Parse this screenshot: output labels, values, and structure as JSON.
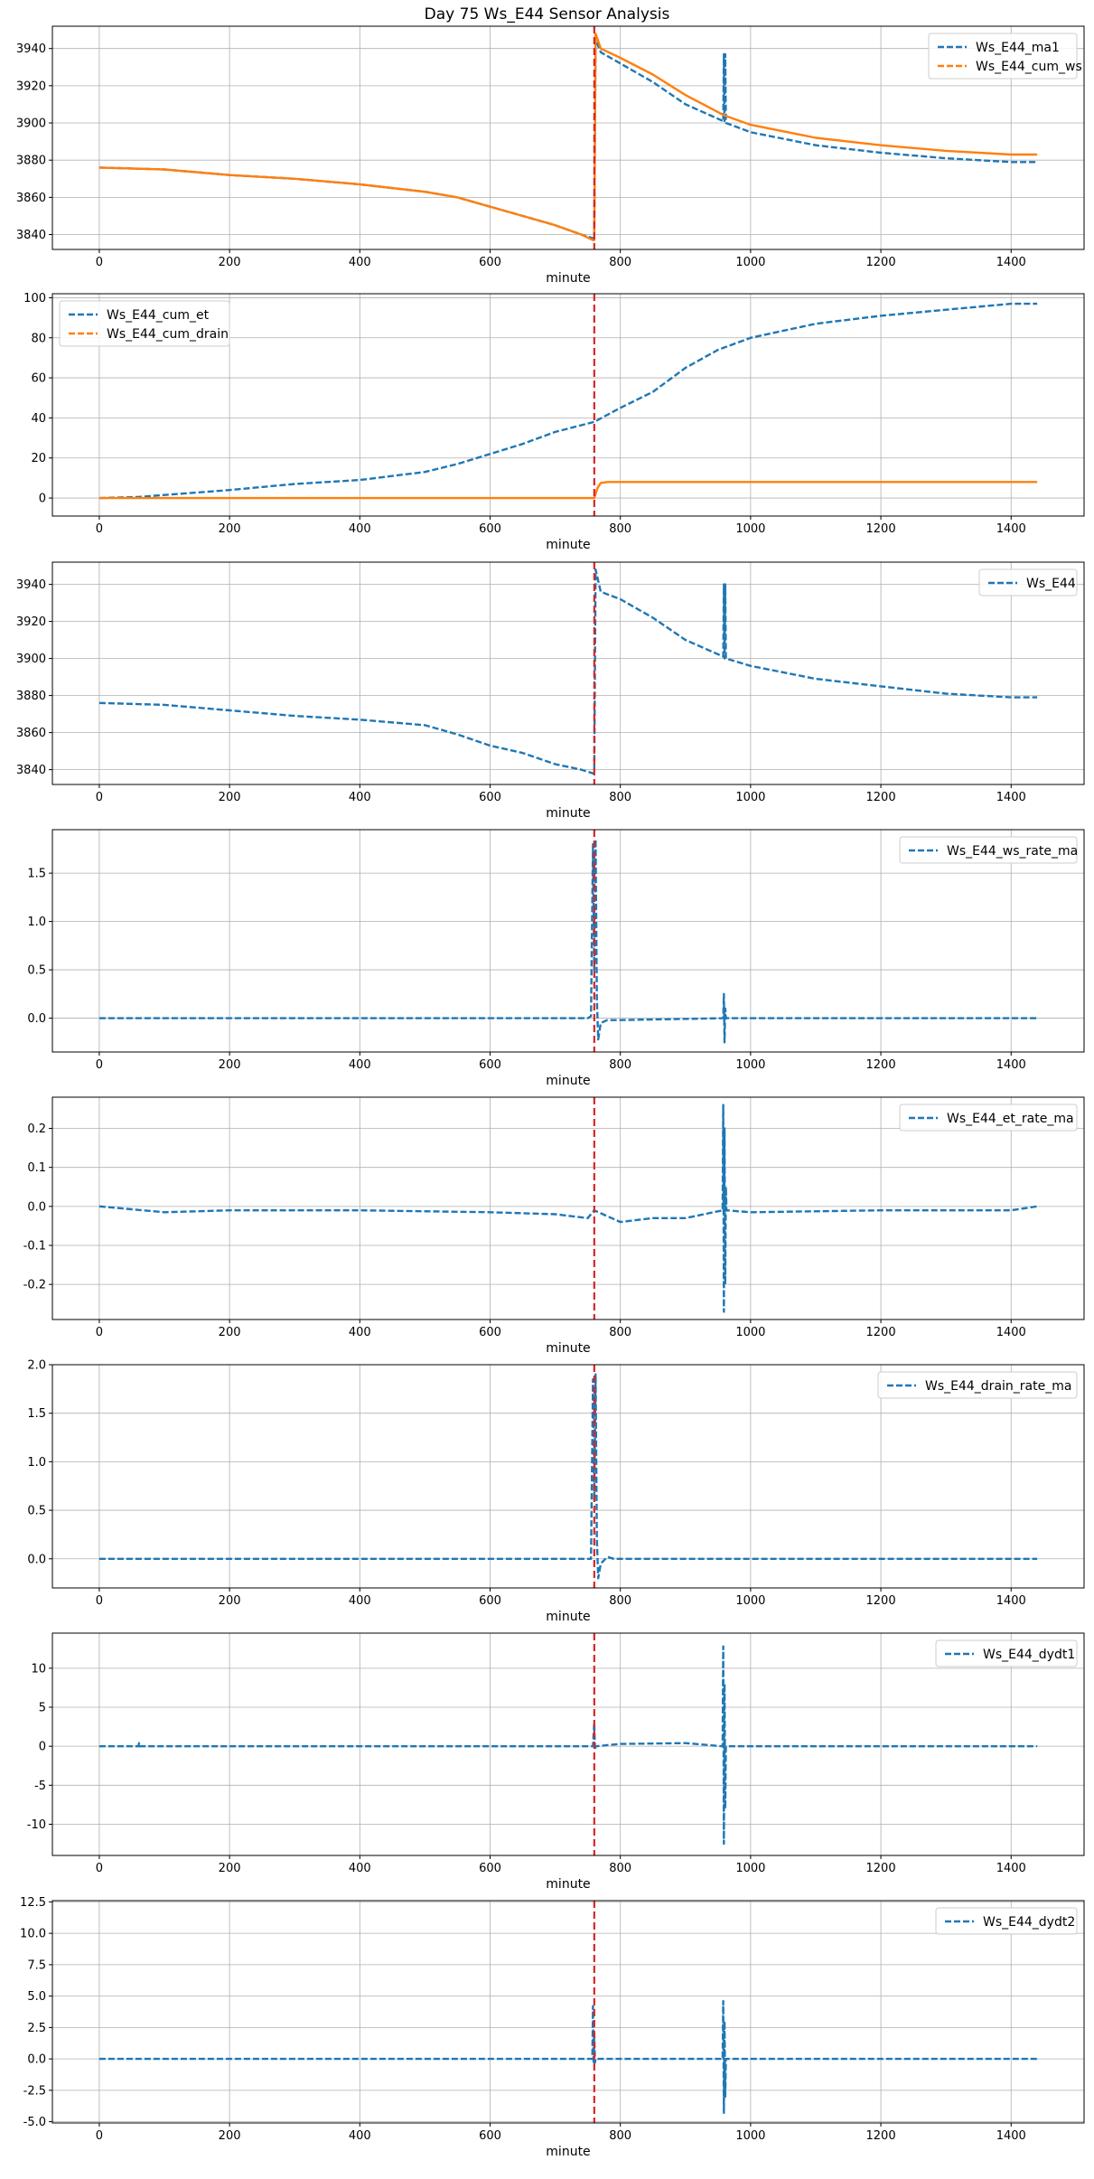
{
  "figure": {
    "title": "Day 75 Ws_E44 Sensor Analysis"
  },
  "colors": {
    "blue": "#1f77b4",
    "orange": "#ff7f0e",
    "event": "#d62728",
    "grid": "#b0b0b0"
  },
  "chart_data": [
    {
      "type": "line",
      "xlabel": "minute",
      "xlim": [
        -72,
        1512
      ],
      "ylim": [
        3832,
        3952
      ],
      "xticks": [
        0,
        200,
        400,
        600,
        800,
        1000,
        1200,
        1400
      ],
      "yticks": [
        3840,
        3860,
        3880,
        3900,
        3920,
        3940
      ],
      "ytick_labels": [
        "3840",
        "3860",
        "3880",
        "3900",
        "3920",
        "3940"
      ],
      "legend_position": "top-right",
      "event_line_x": 760,
      "series": [
        {
          "name": "Ws_E44_ma1",
          "color": "#1f77b4",
          "style": "dashed",
          "x": [
            0,
            100,
            200,
            300,
            400,
            500,
            550,
            600,
            650,
            700,
            740,
            758,
            760,
            762,
            770,
            800,
            850,
            900,
            958,
            959,
            960,
            961,
            962,
            1000,
            1100,
            1200,
            1300,
            1400,
            1440
          ],
          "y": [
            3876,
            3875,
            3872,
            3870,
            3867,
            3863,
            3860,
            3855,
            3850,
            3845,
            3840,
            3838,
            3838,
            3945,
            3938,
            3932,
            3922,
            3910,
            3901,
            3937,
            3900,
            3937,
            3900,
            3895,
            3888,
            3884,
            3881,
            3879,
            3879
          ]
        },
        {
          "name": "Ws_E44_cum_ws",
          "color": "#ff7f0e",
          "style": "solid",
          "x": [
            0,
            100,
            200,
            300,
            400,
            500,
            550,
            600,
            650,
            700,
            740,
            758,
            760,
            762,
            770,
            800,
            850,
            900,
            960,
            1000,
            1100,
            1200,
            1300,
            1400,
            1440
          ],
          "y": [
            3876,
            3875,
            3872,
            3870,
            3867,
            3863,
            3860,
            3855,
            3850,
            3845,
            3840,
            3837,
            3837,
            3948,
            3940,
            3935,
            3926,
            3915,
            3904,
            3899,
            3892,
            3888,
            3885,
            3883,
            3883
          ]
        }
      ]
    },
    {
      "type": "line",
      "xlabel": "minute",
      "xlim": [
        -72,
        1512
      ],
      "ylim": [
        -9,
        102
      ],
      "xticks": [
        0,
        200,
        400,
        600,
        800,
        1000,
        1200,
        1400
      ],
      "yticks": [
        0,
        20,
        40,
        60,
        80,
        100
      ],
      "ytick_labels": [
        "0",
        "20",
        "40",
        "60",
        "80",
        "100"
      ],
      "legend_position": "top-left",
      "event_line_x": 760,
      "series": [
        {
          "name": "Ws_E44_cum_et",
          "color": "#1f77b4",
          "style": "dashed",
          "x": [
            0,
            60,
            100,
            200,
            300,
            400,
            500,
            550,
            600,
            650,
            700,
            760,
            800,
            850,
            900,
            950,
            1000,
            1100,
            1200,
            1300,
            1400,
            1440
          ],
          "y": [
            0,
            0.5,
            1.5,
            4,
            7,
            9,
            13,
            17,
            22,
            27,
            33,
            38,
            45,
            53,
            65,
            74,
            80,
            87,
            91,
            94,
            97,
            97
          ]
        },
        {
          "name": "Ws_E44_cum_drain",
          "color": "#ff7f0e",
          "style": "solid",
          "x": [
            0,
            755,
            760,
            765,
            770,
            780,
            1440
          ],
          "y": [
            0,
            0,
            0,
            5,
            7.5,
            8,
            8
          ]
        }
      ]
    },
    {
      "type": "line",
      "xlabel": "minute",
      "xlim": [
        -72,
        1512
      ],
      "ylim": [
        3832,
        3952
      ],
      "xticks": [
        0,
        200,
        400,
        600,
        800,
        1000,
        1200,
        1400
      ],
      "yticks": [
        3840,
        3860,
        3880,
        3900,
        3920,
        3940
      ],
      "ytick_labels": [
        "3840",
        "3860",
        "3880",
        "3900",
        "3920",
        "3940"
      ],
      "legend_position": "top-right",
      "event_line_x": 760,
      "series": [
        {
          "name": "Ws_E44",
          "color": "#1f77b4",
          "style": "dashed",
          "x": [
            0,
            100,
            200,
            300,
            400,
            500,
            550,
            600,
            650,
            700,
            740,
            758,
            760,
            762,
            770,
            800,
            850,
            900,
            958,
            959,
            960,
            961,
            962,
            1000,
            1100,
            1200,
            1300,
            1400,
            1440
          ],
          "y": [
            3876,
            3875,
            3872,
            3869,
            3867,
            3864,
            3859,
            3853,
            3849,
            3843,
            3840,
            3838,
            3838,
            3948,
            3936,
            3932,
            3922,
            3910,
            3901,
            3940,
            3900,
            3940,
            3900,
            3896,
            3889,
            3885,
            3881,
            3879,
            3879
          ]
        }
      ]
    },
    {
      "type": "line",
      "xlabel": "minute",
      "xlim": [
        -72,
        1512
      ],
      "ylim": [
        -0.35,
        1.95
      ],
      "xticks": [
        0,
        200,
        400,
        600,
        800,
        1000,
        1200,
        1400
      ],
      "yticks": [
        0.0,
        0.5,
        1.0,
        1.5
      ],
      "ytick_labels": [
        "0.0",
        "0.5",
        "1.0",
        "1.5"
      ],
      "legend_position": "top-right",
      "event_line_x": 760,
      "series": [
        {
          "name": "Ws_E44_ws_rate_ma",
          "color": "#1f77b4",
          "style": "dashed",
          "x": [
            0,
            750,
            755,
            758,
            760,
            762,
            764,
            766,
            770,
            780,
            800,
            958,
            959,
            960,
            961,
            962,
            1440
          ],
          "y": [
            0,
            0,
            0.02,
            1.8,
            0.5,
            1.85,
            0.2,
            -0.22,
            -0.05,
            -0.02,
            -0.02,
            0,
            0.25,
            -0.25,
            0.1,
            0,
            0
          ]
        }
      ]
    },
    {
      "type": "line",
      "xlabel": "minute",
      "xlim": [
        -72,
        1512
      ],
      "ylim": [
        -0.29,
        0.28
      ],
      "xticks": [
        0,
        200,
        400,
        600,
        800,
        1000,
        1200,
        1400
      ],
      "yticks": [
        -0.2,
        -0.1,
        0.0,
        0.1,
        0.2
      ],
      "ytick_labels": [
        "-0.2",
        "-0.1",
        "0.0",
        "0.1",
        "0.2"
      ],
      "legend_position": "top-right",
      "event_line_x": 760,
      "series": [
        {
          "name": "Ws_E44_et_rate_ma",
          "color": "#1f77b4",
          "style": "dashed",
          "x": [
            0,
            100,
            200,
            400,
            600,
            700,
            750,
            760,
            800,
            850,
            900,
            957,
            958,
            959,
            960,
            961,
            962,
            963,
            1000,
            1200,
            1400,
            1440
          ],
          "y": [
            0,
            -0.015,
            -0.01,
            -0.01,
            -0.015,
            -0.02,
            -0.03,
            -0.01,
            -0.04,
            -0.03,
            -0.03,
            -0.01,
            0.26,
            -0.27,
            0.2,
            -0.2,
            0.05,
            -0.01,
            -0.015,
            -0.01,
            -0.01,
            0
          ]
        }
      ]
    },
    {
      "type": "line",
      "xlabel": "minute",
      "xlim": [
        -72,
        1512
      ],
      "ylim": [
        -0.3,
        2.0
      ],
      "xticks": [
        0,
        200,
        400,
        600,
        800,
        1000,
        1200,
        1400
      ],
      "yticks": [
        0.0,
        0.5,
        1.0,
        1.5,
        2.0
      ],
      "ytick_labels": [
        "0.0",
        "0.5",
        "1.0",
        "1.5",
        "2.0"
      ],
      "legend_position": "top-right",
      "event_line_x": 760,
      "series": [
        {
          "name": "Ws_E44_drain_rate_ma",
          "color": "#1f77b4",
          "style": "dashed",
          "x": [
            0,
            755,
            758,
            760,
            762,
            764,
            766,
            770,
            780,
            790,
            800,
            1440
          ],
          "y": [
            0,
            0,
            1.85,
            0.6,
            1.9,
            0.2,
            -0.2,
            -0.05,
            0.02,
            0,
            0,
            0
          ]
        }
      ]
    },
    {
      "type": "line",
      "xlabel": "minute",
      "xlim": [
        -72,
        1512
      ],
      "ylim": [
        -14,
        14.5
      ],
      "xticks": [
        0,
        200,
        400,
        600,
        800,
        1000,
        1200,
        1400
      ],
      "yticks": [
        -10,
        -5,
        0,
        5,
        10
      ],
      "ytick_labels": [
        "-10",
        "-5",
        "0",
        "5",
        "10"
      ],
      "legend_position": "top-right",
      "event_line_x": 760,
      "series": [
        {
          "name": "Ws_E44_dydt1",
          "color": "#1f77b4",
          "style": "dashed",
          "x": [
            0,
            60,
            61,
            62,
            300,
            600,
            758,
            760,
            761,
            762,
            800,
            900,
            957,
            958,
            959,
            960,
            961,
            962,
            1200,
            1440
          ],
          "y": [
            0,
            0,
            0.4,
            0,
            0,
            0,
            0,
            3,
            -0.5,
            0,
            0.3,
            0.4,
            0,
            12.8,
            -12.5,
            8,
            -8,
            0,
            0,
            0
          ]
        }
      ]
    },
    {
      "type": "line",
      "xlabel": "minute",
      "xlim": [
        -72,
        1512
      ],
      "ylim": [
        -5.1,
        12.6
      ],
      "xticks": [
        0,
        200,
        400,
        600,
        800,
        1000,
        1200,
        1400
      ],
      "yticks": [
        -5.0,
        -2.5,
        0.0,
        2.5,
        5.0,
        7.5,
        10.0,
        12.5
      ],
      "ytick_labels": [
        "-5.0",
        "-2.5",
        "0.0",
        "2.5",
        "5.0",
        "7.5",
        "10.0",
        "12.5"
      ],
      "legend_position": "top-right",
      "event_line_x": 760,
      "series": [
        {
          "name": "Ws_E44_dydt2",
          "color": "#1f77b4",
          "style": "dashed",
          "x": [
            0,
            300,
            600,
            757,
            758,
            759,
            760,
            761,
            762,
            800,
            957,
            958,
            959,
            960,
            961,
            962,
            1200,
            1440
          ],
          "y": [
            0,
            0,
            0,
            0,
            4.2,
            -0.4,
            2,
            -0.3,
            0,
            0,
            0,
            4.6,
            -4.3,
            3,
            -3,
            0,
            0,
            0
          ]
        }
      ]
    }
  ]
}
